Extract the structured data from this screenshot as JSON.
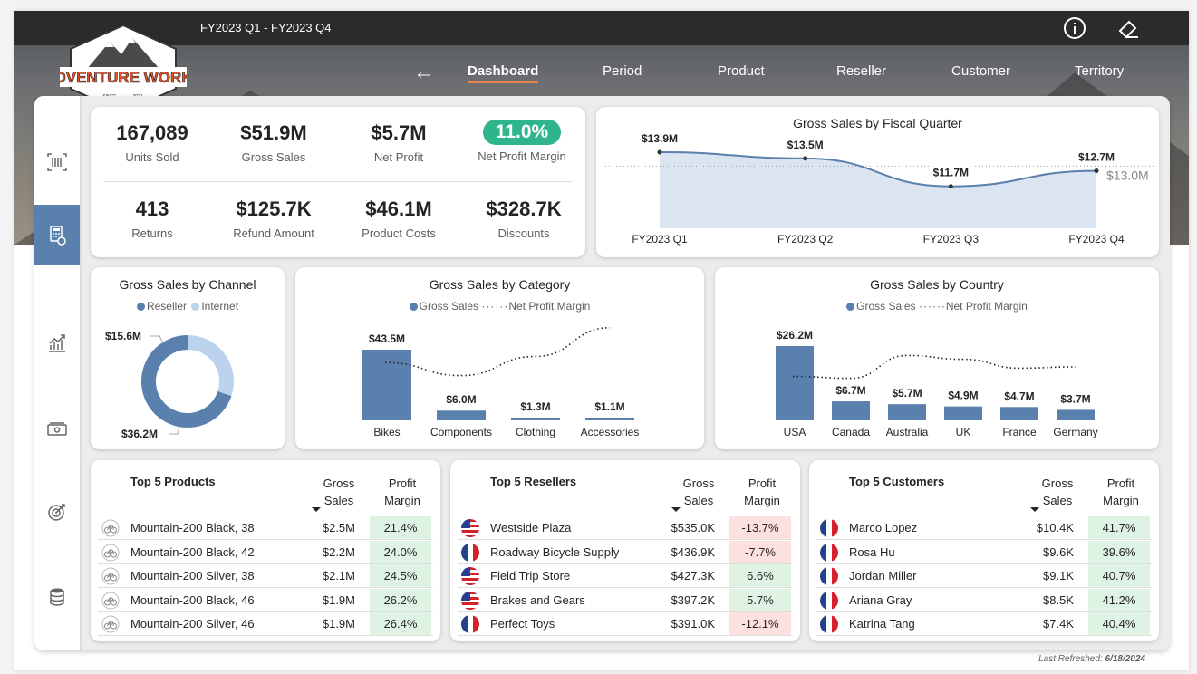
{
  "header": {
    "period": "FY2023 Q1 - FY2023 Q4",
    "logo_text": "ADVENTURE WORKS",
    "logo_since": "SINCE",
    "logo_year": "2021",
    "nav": [
      "Dashboard",
      "Period",
      "Product",
      "Reseller",
      "Customer",
      "Territory"
    ],
    "active_nav": "Dashboard",
    "icons": [
      "info-icon",
      "eraser-icon",
      "back-arrow-icon"
    ]
  },
  "rail": [
    "barcode-icon",
    "calculator-icon",
    "trend-chart-icon",
    "money-icon",
    "target-icon",
    "database-icon"
  ],
  "kpis": {
    "units_sold": {
      "value": "167,089",
      "label": "Units Sold"
    },
    "gross_sales": {
      "value": "$51.9M",
      "label": "Gross Sales"
    },
    "net_profit": {
      "value": "$5.7M",
      "label": "Net Profit"
    },
    "net_profit_margin": {
      "value": "11.0%",
      "label": "Net Profit Margin"
    },
    "returns": {
      "value": "413",
      "label": "Returns"
    },
    "refund_amount": {
      "value": "$125.7K",
      "label": "Refund Amount"
    },
    "product_costs": {
      "value": "$46.1M",
      "label": "Product Costs"
    },
    "discounts": {
      "value": "$328.7K",
      "label": "Discounts"
    }
  },
  "colors": {
    "accent": "#5a80ad",
    "light": "#bcd3ee",
    "positive_bg": "#dff3e5",
    "negative_bg": "#fde1e1",
    "pill": "#2fb58b",
    "nav_underline": "#e5854a"
  },
  "chart_data": [
    {
      "type": "area",
      "title": "Gross Sales by Fiscal Quarter",
      "categories": [
        "FY2023 Q1",
        "FY2023 Q2",
        "FY2023 Q3",
        "FY2023 Q4"
      ],
      "values": [
        13.9,
        13.5,
        11.7,
        12.7
      ],
      "value_labels": [
        "$13.9M",
        "$13.5M",
        "$11.7M",
        "$12.7M"
      ],
      "reference_line": {
        "value": 13.0,
        "label": "$13.0M"
      },
      "ylim": [
        9.0,
        14.6
      ]
    },
    {
      "type": "pie",
      "title": "Gross Sales by Channel",
      "legend": [
        "Reseller",
        "Internet"
      ],
      "values": [
        36.2,
        15.6
      ],
      "value_labels": [
        "$36.2M",
        "$15.6M"
      ]
    },
    {
      "type": "bar",
      "title": "Gross Sales by Category",
      "legend": [
        "Gross Sales",
        "Net Profit Margin"
      ],
      "categories": [
        "Bikes",
        "Components",
        "Clothing",
        "Accessories"
      ],
      "values": [
        43.5,
        6.0,
        1.3,
        1.1
      ],
      "value_labels": [
        "$43.5M",
        "$6.0M",
        "$1.3M",
        "$1.1M"
      ],
      "margin_line": [
        0.55,
        0.4,
        0.62,
        0.95
      ]
    },
    {
      "type": "bar",
      "title": "Gross Sales by Country",
      "legend": [
        "Gross Sales",
        "Net Profit Margin"
      ],
      "categories": [
        "USA",
        "Canada",
        "Australia",
        "UK",
        "France",
        "Germany"
      ],
      "values": [
        26.2,
        6.7,
        5.7,
        4.9,
        4.7,
        3.7
      ],
      "value_labels": [
        "$26.2M",
        "$6.7M",
        "$5.7M",
        "$4.9M",
        "$4.7M",
        "$3.7M"
      ],
      "margin_line": [
        0.45,
        0.42,
        0.78,
        0.72,
        0.58,
        0.6
      ]
    }
  ],
  "tables": {
    "products": {
      "title": "Top 5 Products",
      "col_sales": [
        "Gross",
        "Sales"
      ],
      "col_margin": [
        "Profit",
        "Margin"
      ],
      "rows": [
        {
          "name": "Mountain-200 Black, 38",
          "sales": "$2.5M",
          "margin": "21.4%",
          "positive": true
        },
        {
          "name": "Mountain-200 Black, 42",
          "sales": "$2.2M",
          "margin": "24.0%",
          "positive": true
        },
        {
          "name": "Mountain-200 Silver, 38",
          "sales": "$2.1M",
          "margin": "24.5%",
          "positive": true
        },
        {
          "name": "Mountain-200 Black, 46",
          "sales": "$1.9M",
          "margin": "26.2%",
          "positive": true
        },
        {
          "name": "Mountain-200 Silver, 46",
          "sales": "$1.9M",
          "margin": "26.4%",
          "positive": true
        }
      ]
    },
    "resellers": {
      "title": "Top 5 Resellers",
      "col_sales": [
        "Gross",
        "Sales"
      ],
      "col_margin": [
        "Profit",
        "Margin"
      ],
      "rows": [
        {
          "name": "Westside Plaza",
          "sales": "$535.0K",
          "margin": "-13.7%",
          "positive": false,
          "flag": "us"
        },
        {
          "name": "Roadway Bicycle Supply",
          "sales": "$436.9K",
          "margin": "-7.7%",
          "positive": false,
          "flag": "fr"
        },
        {
          "name": "Field Trip Store",
          "sales": "$427.3K",
          "margin": "6.6%",
          "positive": true,
          "flag": "us"
        },
        {
          "name": "Brakes and Gears",
          "sales": "$397.2K",
          "margin": "5.7%",
          "positive": true,
          "flag": "us"
        },
        {
          "name": "Perfect Toys",
          "sales": "$391.0K",
          "margin": "-12.1%",
          "positive": false,
          "flag": "fr"
        }
      ]
    },
    "customers": {
      "title": "Top 5 Customers",
      "col_sales": [
        "Gross",
        "Sales"
      ],
      "col_margin": [
        "Profit",
        "Margin"
      ],
      "rows": [
        {
          "name": "Marco Lopez",
          "sales": "$10.4K",
          "margin": "41.7%",
          "positive": true,
          "flag": "fr"
        },
        {
          "name": "Rosa Hu",
          "sales": "$9.6K",
          "margin": "39.6%",
          "positive": true,
          "flag": "fr"
        },
        {
          "name": "Jordan Miller",
          "sales": "$9.1K",
          "margin": "40.7%",
          "positive": true,
          "flag": "fr"
        },
        {
          "name": "Ariana Gray",
          "sales": "$8.5K",
          "margin": "41.2%",
          "positive": true,
          "flag": "fr"
        },
        {
          "name": "Katrina Tang",
          "sales": "$7.4K",
          "margin": "40.4%",
          "positive": true,
          "flag": "fr"
        }
      ]
    }
  },
  "footer": {
    "refreshed_label": "Last Refreshed:",
    "refreshed_date": "6/18/2024"
  }
}
